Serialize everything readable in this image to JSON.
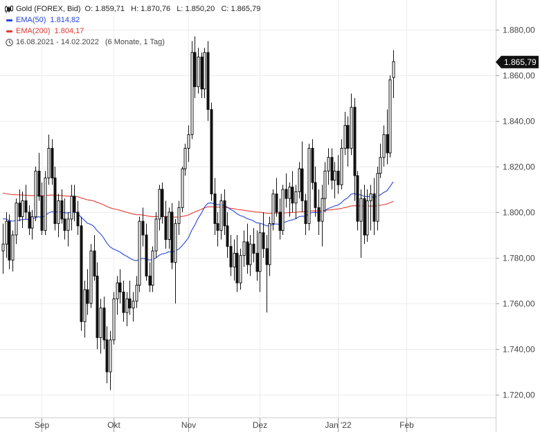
{
  "legend": {
    "title": "Gold (FOREX, Bid)",
    "ohlc": "O: 1.859,71   H: 1.870,76   L: 1.850,20   C: 1.865,79",
    "ema50_label": "EMA(50)",
    "ema50_value": "1.814,82",
    "ema200_label": "EMA(200)",
    "ema200_value": "1.804,17",
    "range": "16.08.2021 - 14.02.2022",
    "period": "(6 Monate, 1 Tag)"
  },
  "chart_data": {
    "type": "candlestick",
    "y_ticks": [
      1720,
      1740,
      1760,
      1780,
      1800,
      1820,
      1840,
      1860,
      1880
    ],
    "y_tick_labels": [
      "1.720,00",
      "1.740,00",
      "1.760,00",
      "1.780,00",
      "1.800,00",
      "1.820,00",
      "1.840,00",
      "1.860,00",
      "1.880,00"
    ],
    "ylim": [
      1710,
      1893
    ],
    "x_ticks": [
      {
        "label": "Sep",
        "index": 12
      },
      {
        "label": "Okt",
        "index": 34
      },
      {
        "label": "Nov",
        "index": 57
      },
      {
        "label": "Dez",
        "index": 79
      },
      {
        "label": "Jan '22",
        "index": 103
      },
      {
        "label": "Feb",
        "index": 124
      }
    ],
    "last_price_label": "1.865,79",
    "last_price": 1865.79,
    "colors": {
      "ema50": "#2445d8",
      "ema200": "#e23a33",
      "candle": "#111111",
      "last_price_bg": "#111111",
      "grid": "#ececec"
    },
    "candles": [
      [
        1783,
        1795,
        1773,
        1786
      ],
      [
        1786,
        1800,
        1780,
        1796
      ],
      [
        1796,
        1799,
        1775,
        1779
      ],
      [
        1779,
        1792,
        1774,
        1790
      ],
      [
        1790,
        1806,
        1786,
        1804
      ],
      [
        1804,
        1810,
        1796,
        1798
      ],
      [
        1798,
        1809,
        1793,
        1805
      ],
      [
        1805,
        1812,
        1797,
        1800
      ],
      [
        1800,
        1803,
        1790,
        1793
      ],
      [
        1793,
        1801,
        1788,
        1798
      ],
      [
        1798,
        1820,
        1796,
        1818
      ],
      [
        1818,
        1826,
        1805,
        1807
      ],
      [
        1807,
        1813,
        1790,
        1792
      ],
      [
        1792,
        1818,
        1790,
        1815
      ],
      [
        1815,
        1834,
        1812,
        1828
      ],
      [
        1828,
        1832,
        1812,
        1815
      ],
      [
        1815,
        1820,
        1792,
        1795
      ],
      [
        1795,
        1808,
        1789,
        1805
      ],
      [
        1805,
        1810,
        1795,
        1797
      ],
      [
        1797,
        1806,
        1788,
        1792
      ],
      [
        1792,
        1800,
        1785,
        1797
      ],
      [
        1797,
        1812,
        1792,
        1807
      ],
      [
        1807,
        1812,
        1796,
        1800
      ],
      [
        1800,
        1805,
        1790,
        1794
      ],
      [
        1794,
        1798,
        1748,
        1752
      ],
      [
        1752,
        1770,
        1745,
        1766
      ],
      [
        1766,
        1775,
        1755,
        1760
      ],
      [
        1760,
        1786,
        1758,
        1783
      ],
      [
        1783,
        1790,
        1770,
        1772
      ],
      [
        1772,
        1778,
        1740,
        1745
      ],
      [
        1745,
        1762,
        1738,
        1758
      ],
      [
        1758,
        1763,
        1740,
        1744
      ],
      [
        1744,
        1750,
        1725,
        1730
      ],
      [
        1730,
        1748,
        1722,
        1744
      ],
      [
        1744,
        1765,
        1742,
        1762
      ],
      [
        1762,
        1772,
        1755,
        1769
      ],
      [
        1769,
        1775,
        1760,
        1765
      ],
      [
        1765,
        1770,
        1752,
        1756
      ],
      [
        1756,
        1765,
        1750,
        1762
      ],
      [
        1762,
        1770,
        1755,
        1758
      ],
      [
        1758,
        1765,
        1752,
        1761
      ],
      [
        1761,
        1772,
        1758,
        1768
      ],
      [
        1768,
        1798,
        1765,
        1796
      ],
      [
        1796,
        1802,
        1785,
        1790
      ],
      [
        1790,
        1795,
        1770,
        1772
      ],
      [
        1772,
        1778,
        1765,
        1768
      ],
      [
        1768,
        1785,
        1765,
        1783
      ],
      [
        1783,
        1800,
        1780,
        1797
      ],
      [
        1797,
        1812,
        1792,
        1810
      ],
      [
        1810,
        1813,
        1795,
        1798
      ],
      [
        1798,
        1805,
        1784,
        1788
      ],
      [
        1788,
        1802,
        1784,
        1800
      ],
      [
        1800,
        1804,
        1775,
        1778
      ],
      [
        1778,
        1797,
        1760,
        1795
      ],
      [
        1795,
        1805,
        1790,
        1802
      ],
      [
        1802,
        1820,
        1800,
        1819
      ],
      [
        1819,
        1830,
        1816,
        1828
      ],
      [
        1828,
        1838,
        1822,
        1834
      ],
      [
        1834,
        1875,
        1832,
        1870
      ],
      [
        1870,
        1877,
        1850,
        1855
      ],
      [
        1855,
        1872,
        1852,
        1868
      ],
      [
        1868,
        1870,
        1850,
        1854
      ],
      [
        1854,
        1872,
        1850,
        1870
      ],
      [
        1870,
        1875,
        1840,
        1845
      ],
      [
        1845,
        1848,
        1805,
        1808
      ],
      [
        1808,
        1815,
        1790,
        1795
      ],
      [
        1795,
        1800,
        1785,
        1792
      ],
      [
        1792,
        1808,
        1788,
        1805
      ],
      [
        1805,
        1810,
        1790,
        1794
      ],
      [
        1794,
        1800,
        1780,
        1785
      ],
      [
        1785,
        1790,
        1772,
        1776
      ],
      [
        1776,
        1788,
        1770,
        1782
      ],
      [
        1782,
        1790,
        1765,
        1769
      ],
      [
        1769,
        1784,
        1766,
        1781
      ],
      [
        1781,
        1792,
        1776,
        1787
      ],
      [
        1787,
        1795,
        1773,
        1777
      ],
      [
        1777,
        1790,
        1772,
        1786
      ],
      [
        1786,
        1793,
        1778,
        1782
      ],
      [
        1782,
        1792,
        1770,
        1774
      ],
      [
        1774,
        1795,
        1765,
        1791
      ],
      [
        1791,
        1800,
        1780,
        1784
      ],
      [
        1784,
        1790,
        1756,
        1777
      ],
      [
        1777,
        1798,
        1772,
        1795
      ],
      [
        1795,
        1810,
        1792,
        1808
      ],
      [
        1808,
        1815,
        1798,
        1800
      ],
      [
        1800,
        1806,
        1788,
        1792
      ],
      [
        1792,
        1812,
        1790,
        1810
      ],
      [
        1810,
        1817,
        1802,
        1806
      ],
      [
        1806,
        1813,
        1798,
        1811
      ],
      [
        1811,
        1818,
        1800,
        1804
      ],
      [
        1804,
        1812,
        1797,
        1809
      ],
      [
        1809,
        1822,
        1806,
        1819
      ],
      [
        1819,
        1831,
        1800,
        1805
      ],
      [
        1805,
        1808,
        1790,
        1795
      ],
      [
        1795,
        1830,
        1792,
        1828
      ],
      [
        1828,
        1832,
        1810,
        1813
      ],
      [
        1813,
        1820,
        1798,
        1802
      ],
      [
        1802,
        1810,
        1790,
        1796
      ],
      [
        1796,
        1812,
        1785,
        1806
      ],
      [
        1806,
        1822,
        1800,
        1818
      ],
      [
        1818,
        1828,
        1812,
        1824
      ],
      [
        1824,
        1828,
        1810,
        1814
      ],
      [
        1814,
        1822,
        1806,
        1818
      ],
      [
        1818,
        1825,
        1808,
        1812
      ],
      [
        1812,
        1832,
        1810,
        1828
      ],
      [
        1828,
        1844,
        1825,
        1838
      ],
      [
        1838,
        1842,
        1820,
        1828
      ],
      [
        1828,
        1852,
        1825,
        1846
      ],
      [
        1846,
        1850,
        1805,
        1816
      ],
      [
        1816,
        1818,
        1792,
        1796
      ],
      [
        1796,
        1810,
        1780,
        1806
      ],
      [
        1806,
        1812,
        1786,
        1790
      ],
      [
        1790,
        1810,
        1787,
        1805
      ],
      [
        1805,
        1812,
        1792,
        1808
      ],
      [
        1808,
        1815,
        1790,
        1796
      ],
      [
        1796,
        1820,
        1792,
        1817
      ],
      [
        1817,
        1830,
        1815,
        1824
      ],
      [
        1824,
        1838,
        1820,
        1834
      ],
      [
        1834,
        1845,
        1821,
        1826
      ],
      [
        1826,
        1860,
        1824,
        1858
      ],
      [
        1859,
        1871,
        1850,
        1866
      ]
    ]
  }
}
